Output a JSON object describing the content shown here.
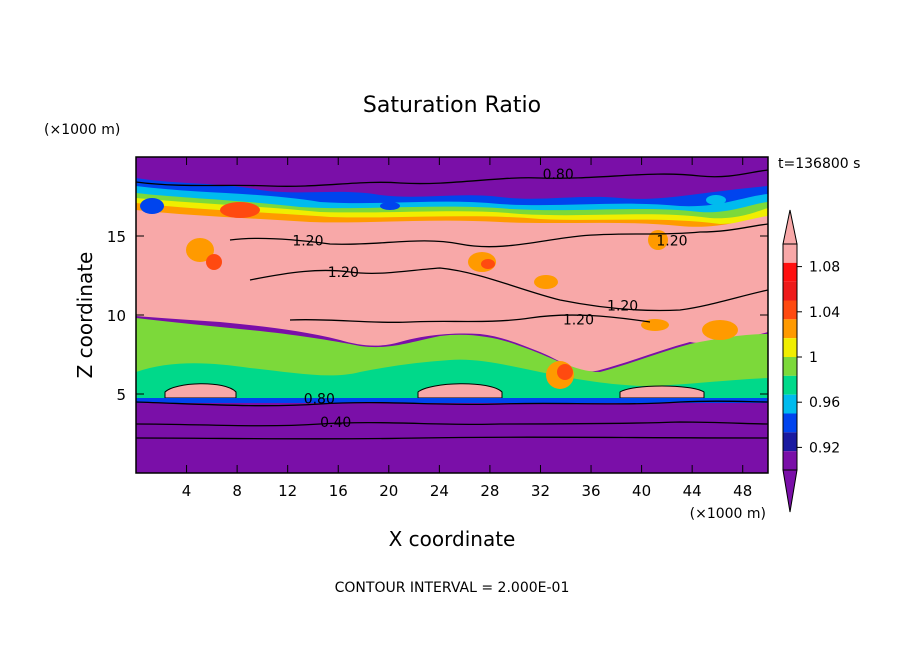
{
  "chart_data": {
    "type": "heatmap",
    "title": "Saturation Ratio",
    "xlabel": "X coordinate",
    "ylabel": "Z coordinate",
    "x_units": "(×1000 m)",
    "y_units": "(×1000 m)",
    "xlim": [
      0,
      50
    ],
    "ylim": [
      0,
      20
    ],
    "x_ticks": [
      4,
      8,
      12,
      16,
      20,
      24,
      28,
      32,
      36,
      40,
      44,
      48
    ],
    "y_ticks": [
      5,
      10,
      15
    ],
    "time_label": "t=136800 s",
    "footer": "CONTOUR INTERVAL = 2.000E-01",
    "colorbar": {
      "labels": [
        "1.08",
        "1.04",
        "1",
        "0.96",
        "0.92"
      ],
      "levels": [
        0.9,
        0.92,
        0.94,
        0.96,
        0.98,
        1.0,
        1.02,
        1.04,
        1.06,
        1.08,
        1.1
      ],
      "colors": [
        "#7a0fa8",
        "#1a1aa0",
        "#0044ee",
        "#00bbee",
        "#00d98a",
        "#7cd93a",
        "#f0ee00",
        "#ff9a00",
        "#ff4a10",
        "#ee1a1a",
        "#ff0f0f",
        "#f8a8a8"
      ],
      "extend_low_color": "#7a0fa8",
      "extend_high_color": "#f8a8a8"
    },
    "contour_labels": [
      {
        "text": "0.80",
        "x": 33.4,
        "y": 18.6
      },
      {
        "text": "1.20",
        "x": 13.6,
        "y": 14.4
      },
      {
        "text": "1.20",
        "x": 16.4,
        "y": 12.4
      },
      {
        "text": "1.20",
        "x": 42.4,
        "y": 14.4
      },
      {
        "text": "1.20",
        "x": 38.5,
        "y": 10.3
      },
      {
        "text": "1.20",
        "x": 35.0,
        "y": 9.4
      },
      {
        "text": "0.80",
        "x": 14.5,
        "y": 4.4
      },
      {
        "text": "0.40",
        "x": 15.8,
        "y": 2.9
      }
    ]
  }
}
